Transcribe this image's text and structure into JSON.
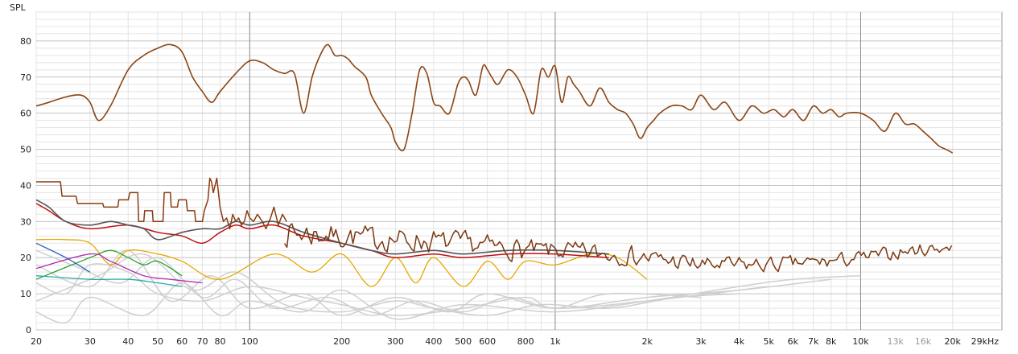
{
  "chart_data": {
    "type": "line",
    "title": "",
    "ylabel": "SPL",
    "xlabel": "",
    "x_scale": "log",
    "xlim": [
      20,
      29000
    ],
    "ylim": [
      0,
      88
    ],
    "grid": true,
    "x_ticks": [
      {
        "v": 20,
        "label": "20",
        "muted": false
      },
      {
        "v": 30,
        "label": "30",
        "muted": false
      },
      {
        "v": 40,
        "label": "40",
        "muted": false
      },
      {
        "v": 50,
        "label": "50",
        "muted": false
      },
      {
        "v": 60,
        "label": "60",
        "muted": false
      },
      {
        "v": 70,
        "label": "70",
        "muted": false
      },
      {
        "v": 80,
        "label": "80",
        "muted": false
      },
      {
        "v": 100,
        "label": "100",
        "muted": false
      },
      {
        "v": 200,
        "label": "200",
        "muted": false
      },
      {
        "v": 300,
        "label": "300",
        "muted": false
      },
      {
        "v": 400,
        "label": "400",
        "muted": false
      },
      {
        "v": 500,
        "label": "500",
        "muted": false
      },
      {
        "v": 600,
        "label": "600",
        "muted": false
      },
      {
        "v": 800,
        "label": "800",
        "muted": false
      },
      {
        "v": 1000,
        "label": "1k",
        "muted": false
      },
      {
        "v": 2000,
        "label": "2k",
        "muted": false
      },
      {
        "v": 3000,
        "label": "3k",
        "muted": false
      },
      {
        "v": 4000,
        "label": "4k",
        "muted": false
      },
      {
        "v": 5000,
        "label": "5k",
        "muted": false
      },
      {
        "v": 6000,
        "label": "6k",
        "muted": false
      },
      {
        "v": 7000,
        "label": "7k",
        "muted": false
      },
      {
        "v": 8000,
        "label": "8k",
        "muted": false
      },
      {
        "v": 10000,
        "label": "10k",
        "muted": false
      },
      {
        "v": 13000,
        "label": "13k",
        "muted": true
      },
      {
        "v": 16000,
        "label": "16k",
        "muted": true
      },
      {
        "v": 20000,
        "label": "20k",
        "muted": false
      },
      {
        "v": 29000,
        "label": "29kHz",
        "muted": false
      }
    ],
    "y_ticks": [
      0,
      10,
      20,
      30,
      40,
      50,
      60,
      70,
      80
    ],
    "series": [
      {
        "color": "#cfcfcf",
        "width": 1.5,
        "smooth": true,
        "x": [
          20,
          25,
          30,
          40,
          50,
          70,
          100,
          150,
          200,
          300,
          500,
          800,
          1000,
          2000,
          5000
        ],
        "y": [
          13,
          10,
          18,
          16,
          10,
          8,
          12,
          9,
          7,
          4,
          6,
          9,
          6,
          8,
          12
        ]
      },
      {
        "color": "#cfcfcf",
        "width": 1.5,
        "smooth": true,
        "x": [
          20,
          25,
          30,
          45,
          60,
          80,
          100,
          150,
          200,
          300,
          500,
          1000,
          2000,
          4000,
          6000,
          10000
        ],
        "y": [
          5,
          2,
          9,
          4,
          13,
          4,
          8,
          5,
          11,
          3,
          7,
          5,
          8,
          12,
          14,
          15
        ]
      },
      {
        "color": "#cfcfcf",
        "width": 1.5,
        "smooth": true,
        "x": [
          20,
          30,
          40,
          55,
          75,
          100,
          150,
          200,
          300,
          450,
          600,
          1000,
          2000,
          4000,
          8000
        ],
        "y": [
          18,
          12,
          22,
          8,
          15,
          6,
          10,
          4,
          9,
          5,
          10,
          6,
          9,
          11,
          14
        ]
      },
      {
        "color": "#cfcfcf",
        "width": 1.5,
        "smooth": true,
        "x": [
          20,
          28,
          38,
          50,
          70,
          90,
          120,
          180,
          250,
          350,
          500,
          700,
          1000,
          1500,
          3000
        ],
        "y": [
          22,
          17,
          13,
          20,
          9,
          14,
          6,
          9,
          4,
          8,
          5,
          9,
          6,
          10,
          9
        ]
      },
      {
        "color": "#cfcfcf",
        "width": 1.5,
        "smooth": true,
        "x": [
          20,
          32,
          45,
          65,
          90,
          130,
          200,
          300,
          400,
          600,
          900,
          1500,
          2500,
          4000
        ],
        "y": [
          8,
          15,
          21,
          11,
          16,
          7,
          5,
          8,
          6,
          4,
          7,
          6,
          9,
          10
        ]
      },
      {
        "color": "#e6a800",
        "width": 1.3,
        "smooth": true,
        "x": [
          20,
          25,
          30,
          35,
          40,
          50,
          60,
          80,
          120,
          160,
          200,
          250,
          300,
          350,
          400,
          500,
          600,
          700,
          800,
          1000,
          1300,
          1600,
          2000
        ],
        "y": [
          25,
          25,
          24,
          18,
          22,
          21,
          19,
          14,
          21,
          16,
          21,
          12,
          20,
          13,
          20,
          12,
          19,
          14,
          19,
          18,
          21,
          20,
          14
        ]
      },
      {
        "color": "#2e9e2e",
        "width": 1.3,
        "smooth": true,
        "x": [
          20,
          30,
          35,
          40,
          45,
          50,
          60
        ],
        "y": [
          14,
          20,
          22,
          20,
          18,
          19,
          15
        ]
      },
      {
        "color": "#b030b0",
        "width": 1.3,
        "smooth": true,
        "x": [
          20,
          30,
          35,
          45,
          55,
          70
        ],
        "y": [
          17,
          21,
          19,
          15,
          14,
          13
        ]
      },
      {
        "color": "#2aa8a8",
        "width": 1.3,
        "smooth": true,
        "x": [
          20,
          30,
          40,
          50,
          60
        ],
        "y": [
          15,
          14,
          14,
          13,
          12
        ]
      },
      {
        "color": "#3060c0",
        "width": 1.3,
        "smooth": true,
        "x": [
          20,
          25,
          30
        ],
        "y": [
          24,
          20,
          16
        ]
      },
      {
        "color": "#c01010",
        "width": 1.5,
        "smooth": true,
        "x": [
          20,
          22,
          25,
          30,
          40,
          50,
          60,
          70,
          80,
          90,
          100,
          120,
          150,
          200,
          250,
          300,
          400,
          500,
          700,
          1000,
          1500
        ],
        "y": [
          35,
          33,
          30,
          28,
          29,
          27,
          26,
          24,
          27,
          29,
          28,
          29,
          26,
          24,
          22,
          20,
          21,
          20,
          21,
          21,
          20
        ]
      },
      {
        "color": "#555555",
        "width": 1.6,
        "smooth": true,
        "x": [
          20,
          22,
          25,
          30,
          35,
          40,
          45,
          50,
          60,
          70,
          80,
          90,
          100,
          120,
          150,
          200,
          250,
          300,
          400,
          500,
          700,
          1000,
          1500
        ],
        "y": [
          36,
          34,
          30,
          29,
          30,
          29,
          28,
          25,
          27,
          28,
          28,
          30,
          29,
          30,
          27,
          24,
          22,
          21,
          22,
          21,
          22,
          22,
          21
        ]
      },
      {
        "color": "#8B3A10",
        "width": 1.5,
        "smooth": false,
        "x": [
          20,
          24,
          24.3,
          27,
          27.3,
          33,
          33.3,
          37,
          37.3,
          40,
          40.5,
          43,
          43.3,
          45,
          45.3,
          48,
          48.3,
          52,
          52.5,
          55,
          55.3,
          58,
          58.5,
          62,
          62.5,
          66,
          66.5,
          70,
          71,
          73,
          74,
          75,
          76,
          78,
          80,
          82,
          84,
          86,
          88,
          90,
          92,
          94,
          96,
          98,
          100,
          103,
          106,
          110,
          113,
          117,
          120,
          124,
          128,
          132
        ],
        "y": [
          41,
          41,
          37,
          37,
          35,
          35,
          34,
          34,
          36,
          36,
          38,
          38,
          30,
          30,
          33,
          33,
          30,
          30,
          38,
          38,
          34,
          34,
          36,
          36,
          33,
          33,
          30,
          30,
          33,
          36,
          42,
          41,
          38,
          42,
          34,
          30,
          31,
          28,
          32,
          30,
          31,
          29,
          30,
          33,
          31,
          30,
          32,
          30,
          28,
          31,
          34,
          29,
          32,
          30
        ]
      },
      {
        "color": "#7a3812",
        "width": 1.5,
        "smooth": true,
        "noise": {
          "amp": 4.5,
          "seed": 7,
          "step": 0.008
        },
        "x": [
          130,
          200,
          300,
          500,
          800,
          1000,
          1500,
          2000,
          3000,
          5000,
          8000,
          10000,
          15000,
          20000
        ],
        "y": [
          27,
          26,
          25,
          24,
          22,
          22,
          21,
          20,
          18,
          18,
          19,
          20,
          22,
          23
        ]
      },
      {
        "color": "#8B4513",
        "width": 1.6,
        "smooth": true,
        "x": [
          20,
          22,
          25,
          28,
          30,
          32,
          35,
          40,
          45,
          50,
          55,
          60,
          65,
          70,
          75,
          80,
          90,
          100,
          110,
          120,
          130,
          140,
          150,
          160,
          170,
          180,
          190,
          200,
          210,
          220,
          240,
          250,
          270,
          290,
          300,
          320,
          340,
          360,
          380,
          400,
          420,
          450,
          480,
          500,
          520,
          550,
          580,
          600,
          620,
          650,
          700,
          750,
          800,
          850,
          900,
          950,
          1000,
          1050,
          1100,
          1150,
          1200,
          1300,
          1400,
          1500,
          1600,
          1700,
          1800,
          1900,
          2000,
          2100,
          2200,
          2400,
          2600,
          2800,
          3000,
          3300,
          3600,
          4000,
          4400,
          4800,
          5200,
          5600,
          6000,
          6500,
          7000,
          7500,
          8000,
          8500,
          9000,
          10000,
          11000,
          12000,
          13000,
          14000,
          15000,
          16000,
          17000,
          18000,
          19000,
          20000
        ],
        "y": [
          62,
          63,
          64.5,
          65,
          63,
          58,
          62,
          72,
          76,
          78,
          79,
          77,
          70,
          66,
          63,
          66,
          71,
          74.5,
          74,
          72,
          71,
          71,
          60,
          70,
          76,
          79,
          76,
          76,
          75,
          73,
          70,
          65,
          60,
          56,
          52,
          50,
          60,
          72,
          71,
          63,
          62,
          60,
          68,
          70,
          69,
          65,
          73,
          72,
          70,
          68,
          72,
          70,
          65,
          60,
          72,
          70,
          73,
          63,
          70,
          68,
          66,
          62,
          67,
          63,
          61,
          60,
          57,
          53,
          56,
          58,
          60,
          62,
          62,
          61,
          65,
          61,
          63,
          58,
          62,
          60,
          61,
          59,
          61,
          58,
          62,
          60,
          61,
          59,
          60,
          60,
          58,
          55,
          60,
          57,
          57,
          55,
          53,
          51,
          50,
          49
        ]
      }
    ]
  }
}
